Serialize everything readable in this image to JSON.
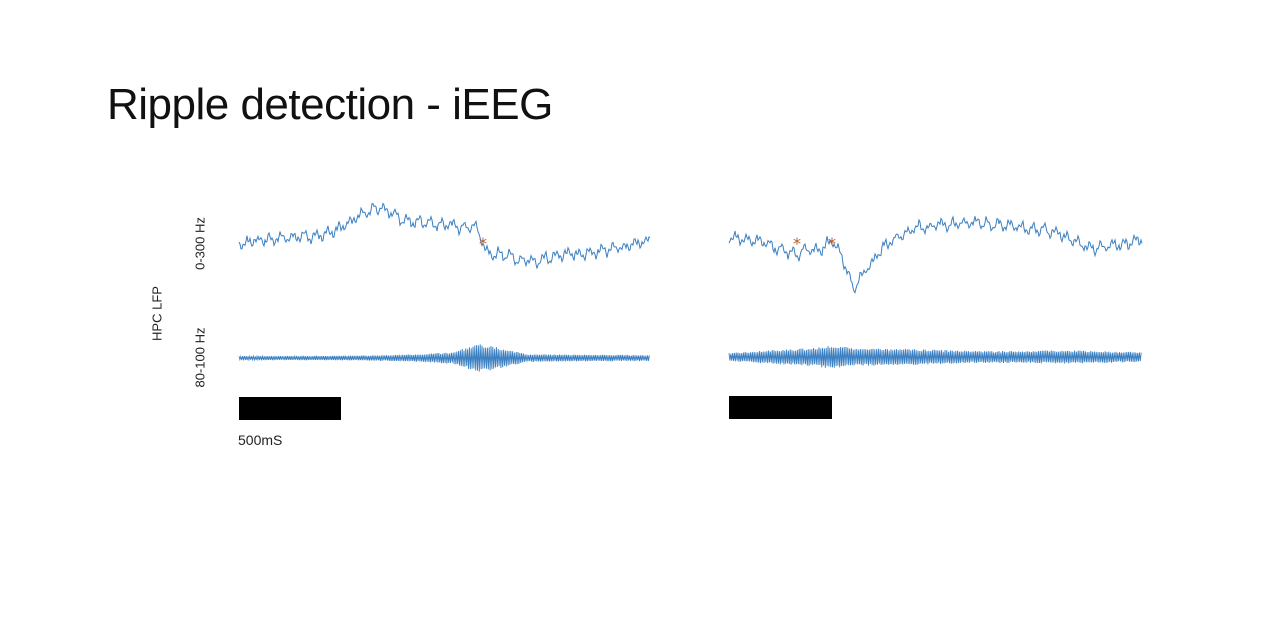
{
  "title": "Ripple detection - iEEG",
  "y_group_label": "HPC LFP",
  "bands": [
    {
      "label": "0-300 Hz"
    },
    {
      "label": "80-100 Hz"
    }
  ],
  "scale_bar": {
    "label": "500mS",
    "duration_ms": 500
  },
  "colors": {
    "trace": "#3a7fc1",
    "marker": "#b5582a",
    "scale_bar": "#000000",
    "text": "#111111"
  },
  "panels": [
    {
      "name": "left",
      "detected_event_markers": 1
    },
    {
      "name": "right",
      "detected_event_markers": 2
    }
  ]
}
